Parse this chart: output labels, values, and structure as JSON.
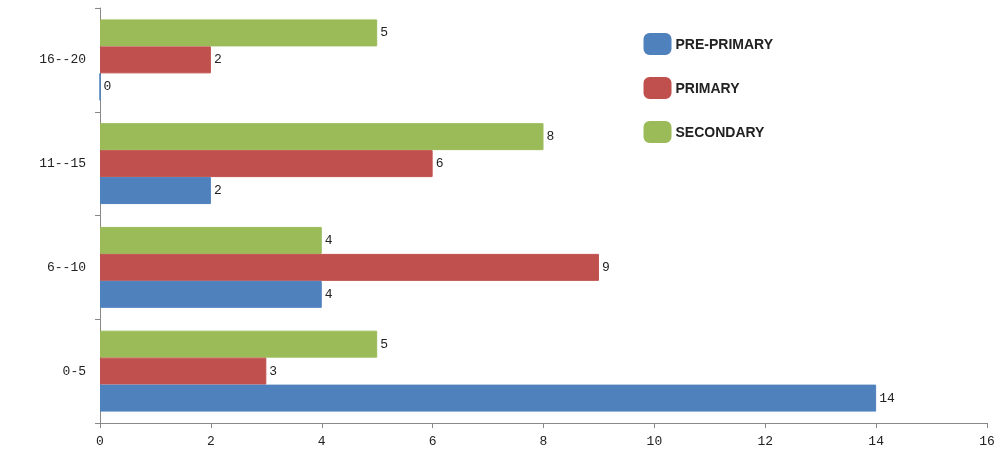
{
  "chart_data": {
    "type": "bar",
    "orientation": "horizontal",
    "categories": [
      "16--20",
      "11--15",
      "6--10",
      "0-5"
    ],
    "series": [
      {
        "name": "PRE-PRIMARY",
        "color": "#4f81bd",
        "values": [
          0,
          2,
          4,
          14
        ]
      },
      {
        "name": "PRIMARY",
        "color": "#c0504d",
        "values": [
          2,
          6,
          9,
          3
        ]
      },
      {
        "name": "SECONDARY",
        "color": "#9bbb59",
        "values": [
          5,
          8,
          4,
          5
        ]
      }
    ],
    "xlim": [
      0,
      16
    ],
    "xticks": [
      0,
      2,
      4,
      6,
      8,
      10,
      12,
      14,
      16
    ],
    "data_labels": true,
    "grid": false,
    "legend": "top right"
  }
}
